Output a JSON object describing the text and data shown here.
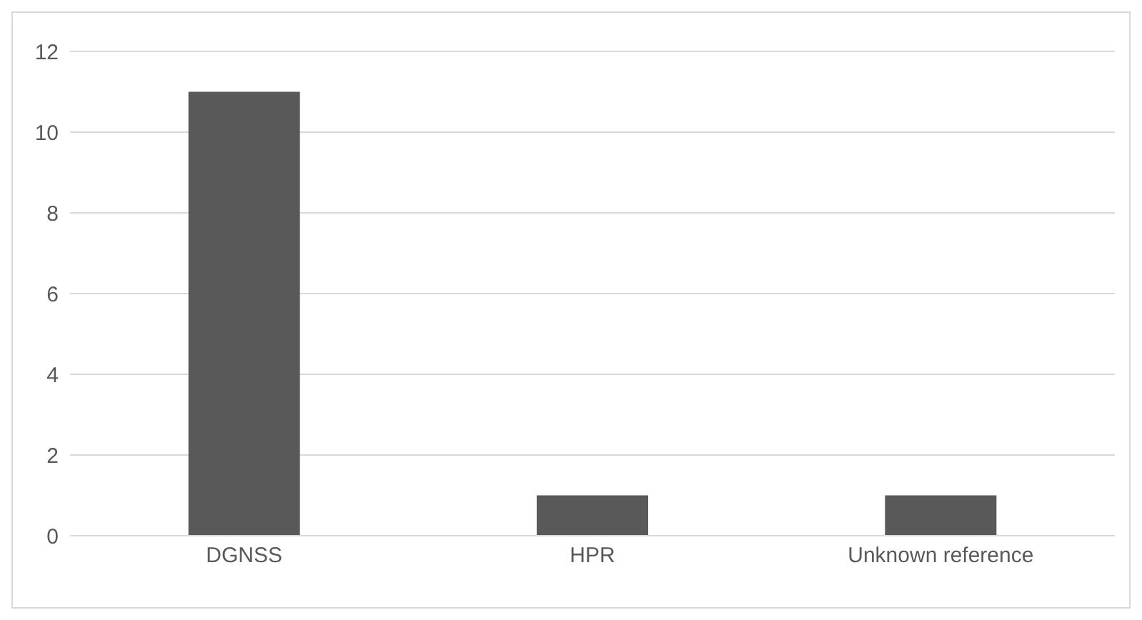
{
  "chart_data": {
    "type": "bar",
    "categories": [
      "DGNSS",
      "HPR",
      "Unknown reference"
    ],
    "values": [
      11,
      1,
      1
    ],
    "color": "#595959",
    "ylim": [
      0,
      12
    ],
    "yticks": [
      0,
      2,
      4,
      6,
      8,
      10,
      12
    ],
    "grid": "y"
  }
}
